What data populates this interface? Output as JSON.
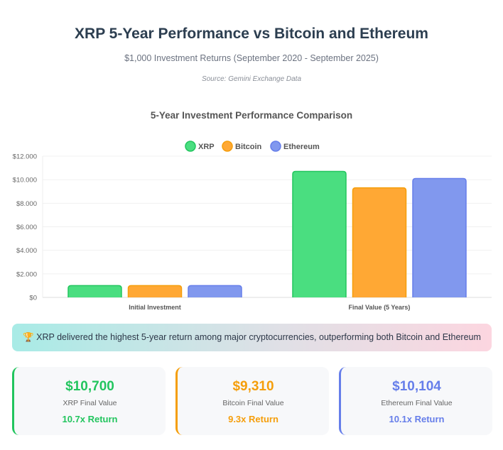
{
  "header": {
    "title": "XRP 5-Year Performance vs Bitcoin and Ethereum",
    "subtitle": "$1,000 Investment Returns (September 2020 - September 2025)",
    "source": "Source: Gemini Exchange Data"
  },
  "chart_data": {
    "type": "bar",
    "title": "5-Year Investment Performance Comparison",
    "categories": [
      "Initial Investment",
      "Final Value (5 Years)"
    ],
    "series": [
      {
        "name": "XRP",
        "values": [
          1000,
          10700
        ],
        "color": "#4ade80",
        "border": "#22c55e"
      },
      {
        "name": "Bitcoin",
        "values": [
          1000,
          9310
        ],
        "color": "#ffa834",
        "border": "#f59e0b"
      },
      {
        "name": "Ethereum",
        "values": [
          1000,
          10104
        ],
        "color": "#8198ee",
        "border": "#667eea"
      }
    ],
    "ylim": [
      0,
      12000
    ],
    "yticks": [
      "$0",
      "$2.000",
      "$4.000",
      "$6.000",
      "$8.000",
      "$10.000",
      "$12.000"
    ],
    "legend": "top",
    "grid": true
  },
  "banner": {
    "icon": "trophy-icon",
    "text": "🏆 XRP delivered the highest 5-year return among major cryptocurrencies, outperforming both Bitcoin and Ethereum"
  },
  "cards": [
    {
      "value": "$10,700",
      "label": "XRP Final Value",
      "return": "10.7x Return",
      "color": "#22c55e"
    },
    {
      "value": "$9,310",
      "label": "Bitcoin Final Value",
      "return": "9.3x Return",
      "color": "#f59e0b"
    },
    {
      "value": "$10,104",
      "label": "Ethereum Final Value",
      "return": "10.1x Return",
      "color": "#667eea"
    }
  ]
}
